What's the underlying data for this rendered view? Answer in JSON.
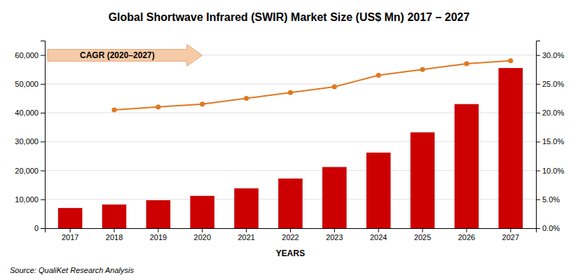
{
  "chart_data": {
    "type": "bar",
    "title": "Global Shortwave Infrared (SWIR) Market Size (US$ Mn) 2017 – 2027",
    "xlabel": "YEARS",
    "annotations": [
      "CAGR (2020–2027)",
      "Source: QualiKet Research Analysis"
    ],
    "categories": [
      "2017",
      "2018",
      "2019",
      "2020",
      "2021",
      "2022",
      "2023",
      "2024",
      "2025",
      "2026",
      "2027"
    ],
    "series": [
      {
        "type": "bar",
        "color": "#cc0000",
        "values": [
          7000,
          8200,
          9700,
          11200,
          13800,
          17200,
          21200,
          26200,
          33200,
          43000,
          55500
        ]
      },
      {
        "type": "line",
        "color": "#e07820",
        "marker": "circle",
        "axis": "y2",
        "values": [
          null,
          0.205,
          0.21,
          0.215,
          0.225,
          0.235,
          0.245,
          0.265,
          0.275,
          0.285,
          0.29
        ]
      }
    ],
    "ylim": [
      0,
      65000
    ],
    "yticks": [
      0,
      {
        "value": 10000,
        "label": "10,000"
      },
      {
        "value": 20000,
        "label": "20,000"
      },
      {
        "value": 30000,
        "label": "30,000"
      },
      {
        "value": 40000,
        "label": "40,000"
      },
      {
        "value": 50000,
        "label": "50,000"
      },
      {
        "value": 60000,
        "label": "60,000"
      }
    ],
    "y2lim": [
      0,
      0.325
    ],
    "y2ticks": [
      {
        "value": 0,
        "label": "0.0%"
      },
      {
        "value": 0.05,
        "label": "5.0%"
      },
      {
        "value": 0.1,
        "label": "10.0%"
      },
      {
        "value": 0.15,
        "label": "15.0%"
      },
      {
        "value": 0.2,
        "label": "20.0%"
      },
      {
        "value": 0.25,
        "label": "25.0%"
      },
      {
        "value": 0.3,
        "label": "30.0%"
      }
    ],
    "grid": true
  }
}
